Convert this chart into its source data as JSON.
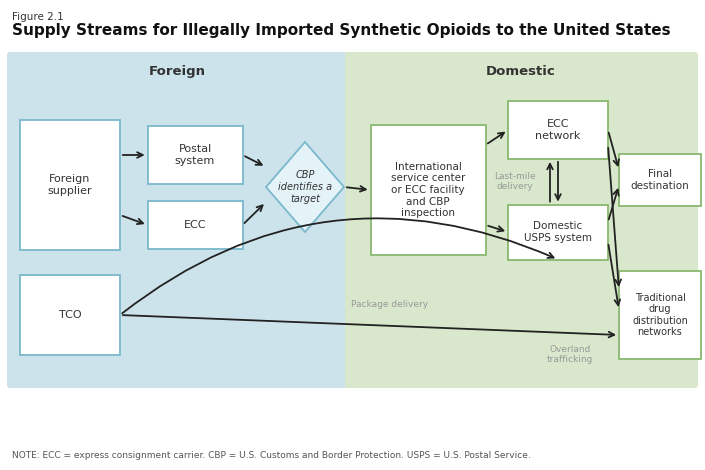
{
  "figure_label": "Figure 2.1",
  "title": "Supply Streams for Illegally Imported Synthetic Opioids to the United States",
  "note": "NOTE: ECC = express consignment carrier. CBP = U.S. Customs and Border Protection. USPS = U.S. Postal Service.",
  "foreign_bg": "#cde3eb",
  "domestic_bg": "#d9e8cc",
  "foreign_label": "Foreign",
  "domestic_label": "Domestic",
  "box_bg": "#ffffff",
  "foreign_box_border": "#7ab8cc",
  "domestic_box_border": "#8ab86e",
  "arrow_color": "#222222",
  "label_color": "#999999",
  "fig_bg": "#ffffff"
}
